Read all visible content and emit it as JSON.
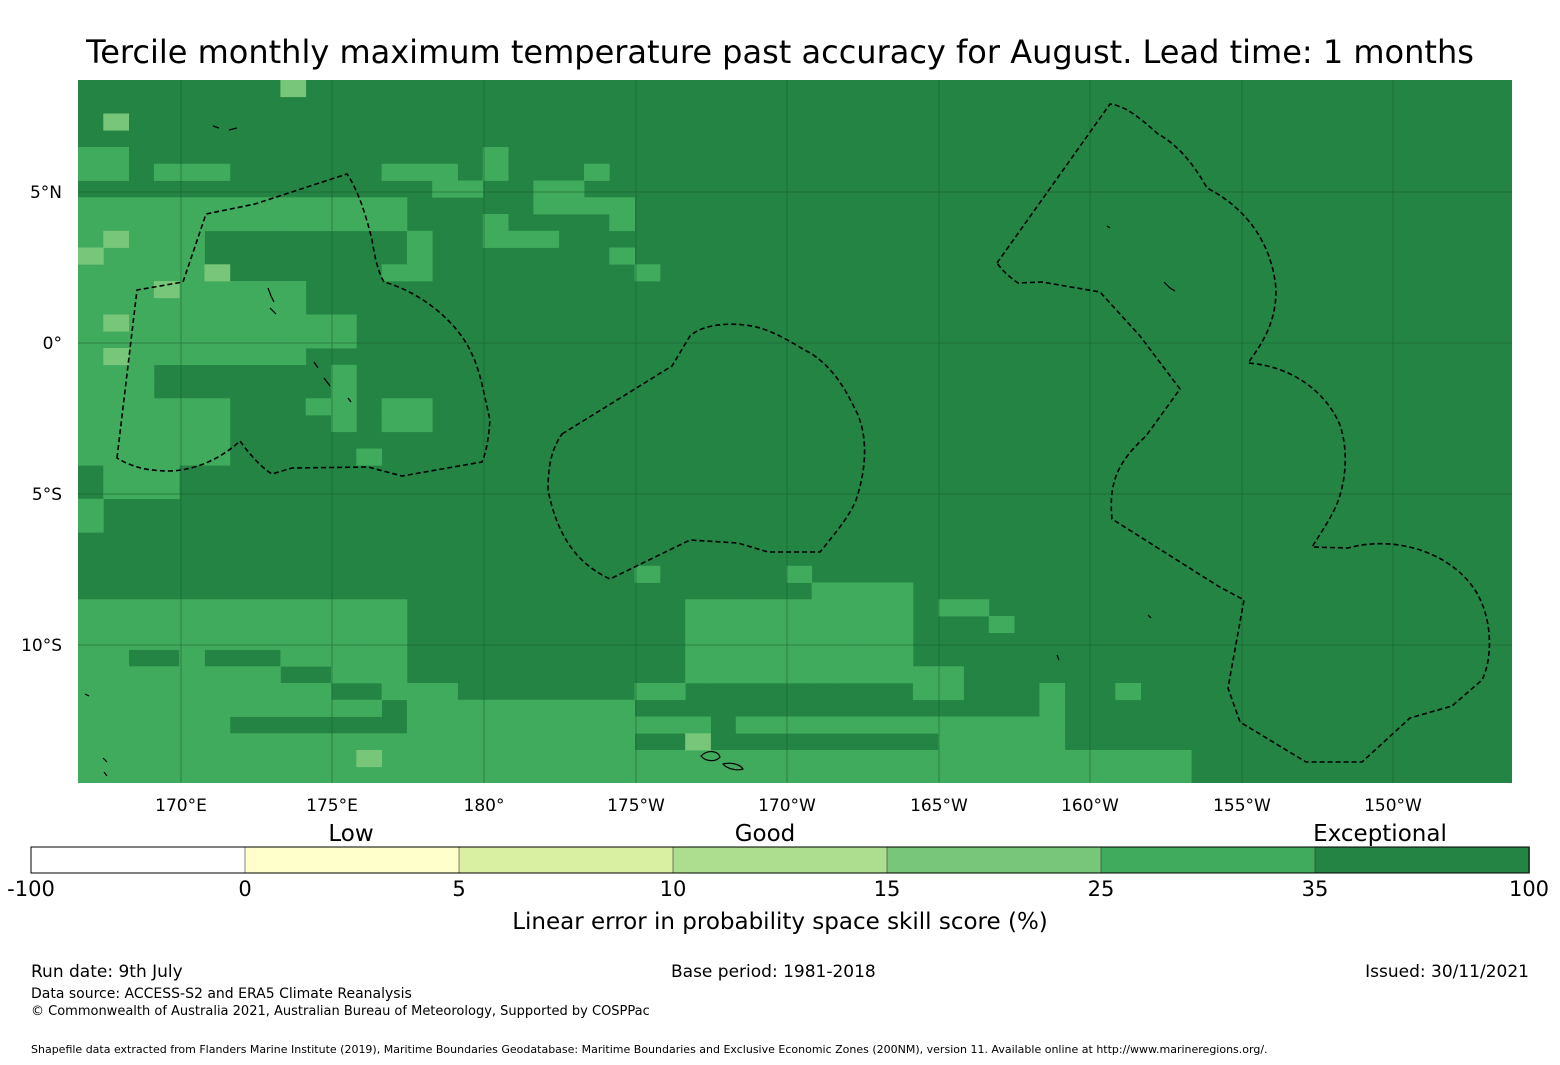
{
  "title": "Tercile monthly maximum temperature past accuracy for August. Lead time: 1 months",
  "map": {
    "lat_labels": [
      "5°N",
      "0°",
      "5°S",
      "10°S"
    ],
    "lon_labels": [
      "170°E",
      "175°E",
      "180°",
      "175°W",
      "170°W",
      "165°W",
      "160°W",
      "155°W",
      "150°W"
    ],
    "skill_colors": {
      "exceptional": "#238443",
      "very_good": "#41ab5d",
      "good": "#78c679"
    },
    "eez_line_style": "dashed",
    "coastline_color": "#000000"
  },
  "colorbar": {
    "category_labels": [
      "Low",
      "Good",
      "Exceptional"
    ],
    "ticks": [
      "-100",
      "0",
      "5",
      "10",
      "15",
      "25",
      "35",
      "100"
    ],
    "colors": [
      "#ffffff",
      "#ffffcc",
      "#d9f0a3",
      "#addd8e",
      "#78c679",
      "#41ab5d",
      "#238443"
    ],
    "label": "Linear error in probability space skill score (%)"
  },
  "footer": {
    "run_date": "Run date: 9th July",
    "base_period": "Base period: 1981-2018",
    "issued": "Issued: 30/11/2021",
    "data_source": "Data source: ACCESS-S2 and ERA5 Climate Reanalysis",
    "copyright": "© Commonwealth of Australia 2021, Australian Bureau of Meteorology, Supported by COSPPac",
    "shapefile": "Shapefile data extracted from Flanders Marine Institute (2019), Maritime Boundaries Geodatabase: Maritime Boundaries and Exclusive Economic Zones (200NM), version 11. Available online at http://www.marineregions.org/."
  }
}
